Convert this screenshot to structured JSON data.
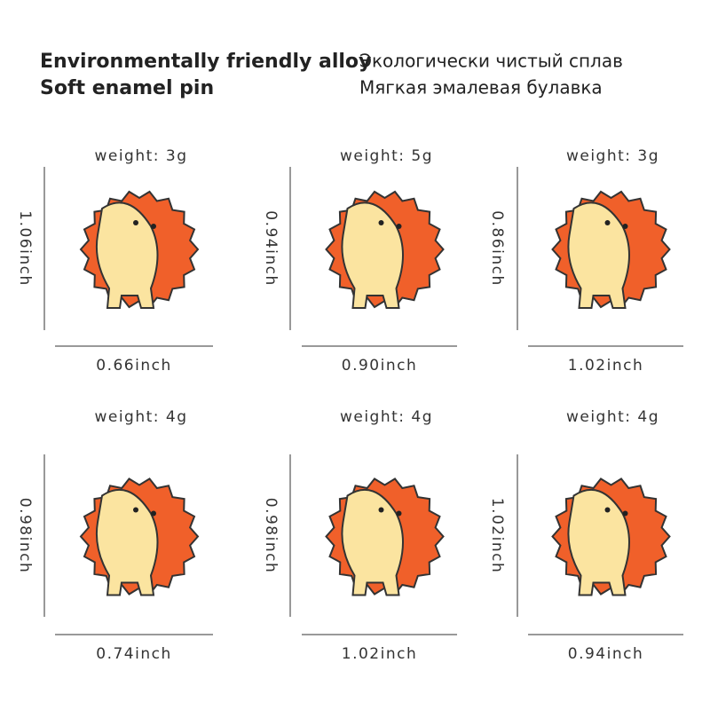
{
  "header": {
    "left": [
      "Environmentally friendly alloy",
      "Soft enamel pin"
    ],
    "right": [
      "Экологически чистый сплав",
      "Мягкая эмалевая булавка"
    ]
  },
  "items": [
    {
      "weight": "weight:  3g",
      "height": "1.06inch",
      "width": "0.66inch"
    },
    {
      "weight": "weight:  5g",
      "height": "0.94inch",
      "width": "0.90inch"
    },
    {
      "weight": "weight:  3g",
      "height": "0.86inch",
      "width": "1.02inch"
    },
    {
      "weight": "weight:  4g",
      "height": "0.98inch",
      "width": "0.74inch"
    },
    {
      "weight": "weight:  4g",
      "height": "0.98inch",
      "width": "1.02inch"
    },
    {
      "weight": "weight:  4g",
      "height": "1.02inch",
      "width": "0.94inch"
    }
  ]
}
